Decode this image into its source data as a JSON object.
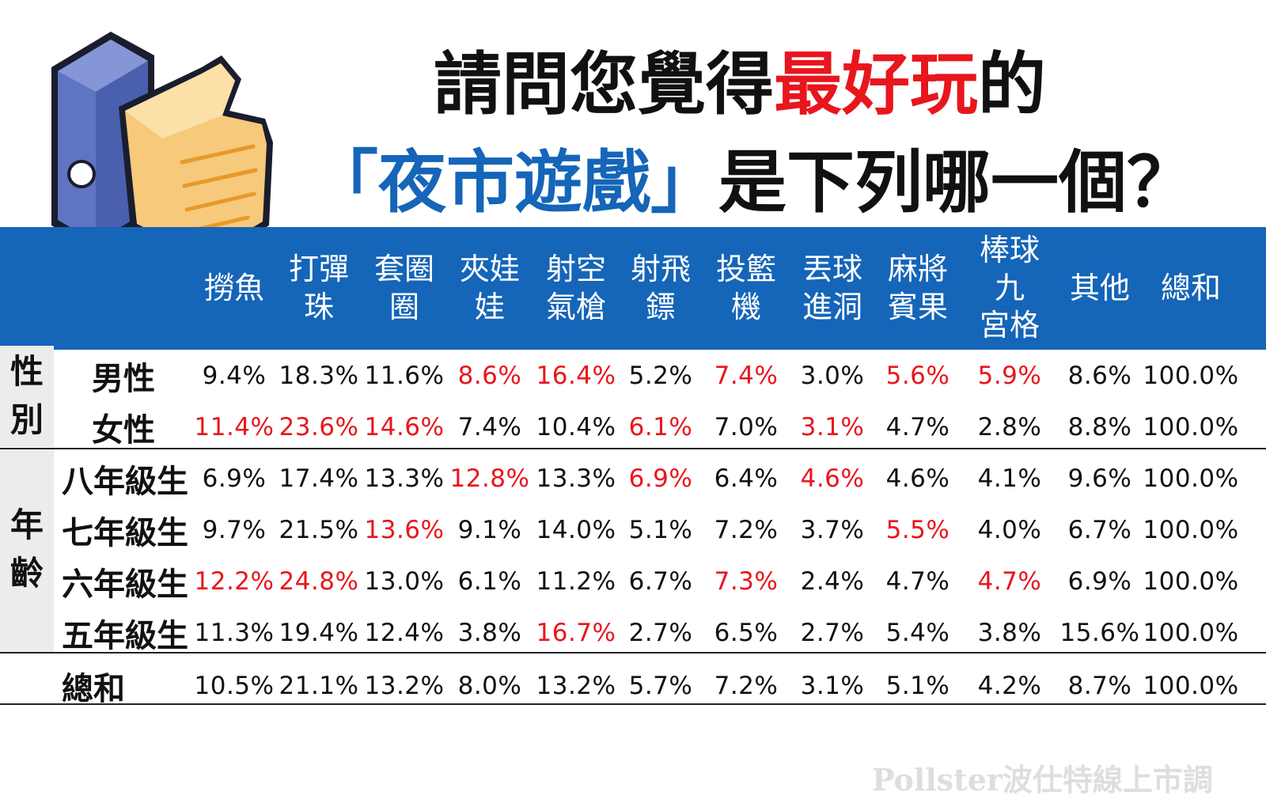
{
  "title": {
    "line1_a": "請問您覺得",
    "line1_b": "最好玩",
    "line1_c": "的",
    "line2_a": "「夜市遊戲」",
    "line2_b": "是下列哪一個？"
  },
  "icon": "thumbs-up-icon",
  "colors": {
    "header_bg": "#1565b8",
    "highlight": "#e8161d",
    "title_blue": "#1565b8",
    "group_bg": "#ececec"
  },
  "chart_data": {
    "type": "table",
    "columns": [
      "撈魚",
      "打彈\n珠",
      "套圈\n圈",
      "夾娃\n娃",
      "射空\n氣槍",
      "射飛\n鏢",
      "投籃\n機",
      "丟球\n進洞",
      "麻將\n賓果",
      "棒球九\n宮格",
      "其他",
      "總和"
    ],
    "groups": [
      {
        "label": "性\n別",
        "rows": [
          0,
          1
        ]
      },
      {
        "label": "年\n齡",
        "rows": [
          2,
          3,
          4,
          5
        ]
      }
    ],
    "rows": [
      {
        "label": "男性",
        "values": [
          "9.4%",
          "18.3%",
          "11.6%",
          "8.6%",
          "16.4%",
          "5.2%",
          "7.4%",
          "3.0%",
          "5.6%",
          "5.9%",
          "8.6%",
          "100.0%"
        ],
        "highlight": [
          3,
          4,
          6,
          8,
          9
        ]
      },
      {
        "label": "女性",
        "values": [
          "11.4%",
          "23.6%",
          "14.6%",
          "7.4%",
          "10.4%",
          "6.1%",
          "7.0%",
          "3.1%",
          "4.7%",
          "2.8%",
          "8.8%",
          "100.0%"
        ],
        "highlight": [
          0,
          1,
          2,
          5,
          7
        ]
      },
      {
        "label": "八年級生",
        "values": [
          "6.9%",
          "17.4%",
          "13.3%",
          "12.8%",
          "13.3%",
          "6.9%",
          "6.4%",
          "4.6%",
          "4.6%",
          "4.1%",
          "9.6%",
          "100.0%"
        ],
        "highlight": [
          3,
          5,
          7
        ]
      },
      {
        "label": "七年級生",
        "values": [
          "9.7%",
          "21.5%",
          "13.6%",
          "9.1%",
          "14.0%",
          "5.1%",
          "7.2%",
          "3.7%",
          "5.5%",
          "4.0%",
          "6.7%",
          "100.0%"
        ],
        "highlight": [
          2,
          8
        ]
      },
      {
        "label": "六年級生",
        "values": [
          "12.2%",
          "24.8%",
          "13.0%",
          "6.1%",
          "11.2%",
          "6.7%",
          "7.3%",
          "2.4%",
          "4.7%",
          "4.7%",
          "6.9%",
          "100.0%"
        ],
        "highlight": [
          0,
          1,
          6,
          9
        ]
      },
      {
        "label": "五年級生",
        "values": [
          "11.3%",
          "19.4%",
          "12.4%",
          "3.8%",
          "16.7%",
          "2.7%",
          "6.5%",
          "2.7%",
          "5.4%",
          "3.8%",
          "15.6%",
          "100.0%"
        ],
        "highlight": [
          4
        ]
      },
      {
        "label": "總和",
        "values": [
          "10.5%",
          "21.1%",
          "13.2%",
          "8.0%",
          "13.2%",
          "5.7%",
          "7.2%",
          "3.1%",
          "5.1%",
          "4.2%",
          "8.7%",
          "100.0%"
        ],
        "highlight": []
      }
    ]
  },
  "watermark": "Pollster波仕特線上市調"
}
